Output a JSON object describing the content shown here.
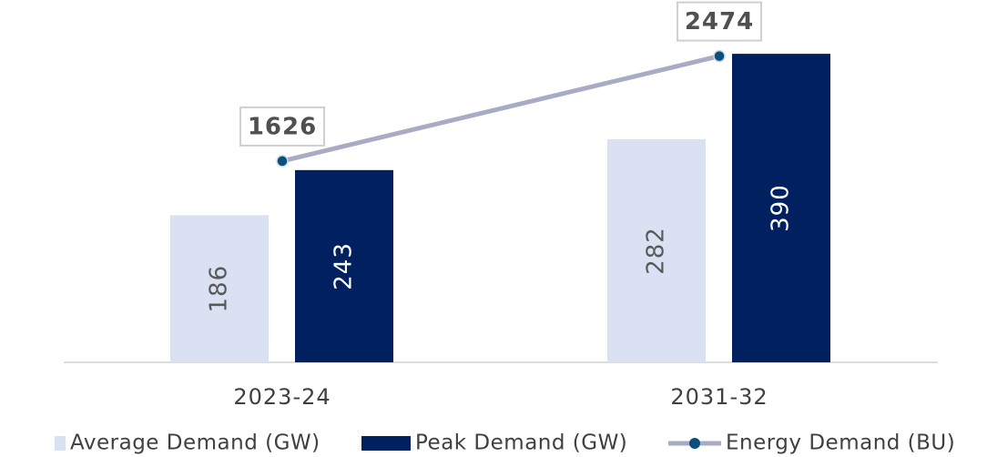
{
  "chart_data": {
    "type": "bar",
    "categories": [
      "2023-24",
      "2031-32"
    ],
    "series": [
      {
        "name": "Average Demand (GW)",
        "color": "#d9e1f2",
        "values": [
          186,
          282
        ],
        "type": "bar"
      },
      {
        "name": "Peak Demand (GW)",
        "color": "#002060",
        "values": [
          243,
          390
        ],
        "type": "bar"
      },
      {
        "name": "Energy Demand (BU)",
        "color": "#a9abc5",
        "values": [
          1626,
          2474
        ],
        "type": "line",
        "axis": "y2",
        "marker_color": "#0b4f7c"
      }
    ],
    "ylim": [
      0,
      435
    ],
    "y2lim": [
      0,
      2780
    ],
    "legend": "bottom"
  }
}
